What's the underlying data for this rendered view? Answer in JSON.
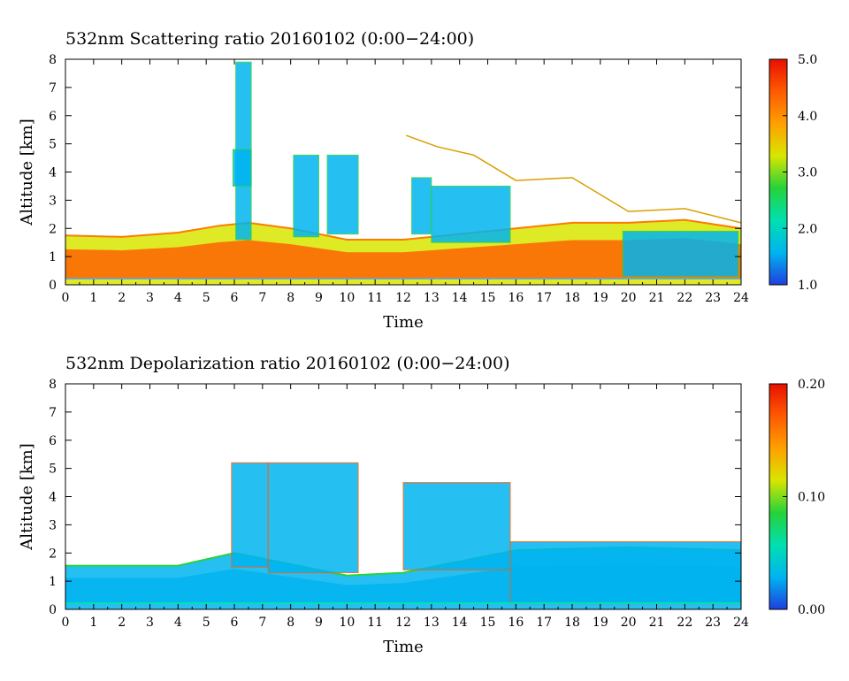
{
  "chart_data": [
    {
      "type": "heatmap",
      "title": "532nm Scattering ratio  20160102 (0:00−24:00)",
      "xlabel": "Time",
      "ylabel": "Altitude [km]",
      "xlim": [
        0,
        24
      ],
      "ylim": [
        0,
        8
      ],
      "x_ticks": [
        "0",
        "1",
        "2",
        "3",
        "4",
        "5",
        "6",
        "7",
        "8",
        "9",
        "10",
        "11",
        "12",
        "13",
        "14",
        "15",
        "16",
        "17",
        "18",
        "19",
        "20",
        "21",
        "22",
        "23",
        "24"
      ],
      "y_ticks": [
        "0",
        "1",
        "2",
        "3",
        "4",
        "5",
        "6",
        "7",
        "8"
      ],
      "colorbar": {
        "range": [
          1.0,
          5.0
        ],
        "tick_labels": [
          "1.0",
          "2.0",
          "3.0",
          "4.0",
          "5.0"
        ],
        "colors": [
          "#1f3fe0",
          "#00b4f0",
          "#00e0b0",
          "#26d23a",
          "#d8e600",
          "#ffa000",
          "#ff5a00",
          "#e81000"
        ]
      },
      "boundary_layer_top_km": [
        {
          "t": 0,
          "z": 1.75
        },
        {
          "t": 2,
          "z": 1.7
        },
        {
          "t": 4,
          "z": 1.85
        },
        {
          "t": 5.5,
          "z": 2.1
        },
        {
          "t": 6.5,
          "z": 2.2
        },
        {
          "t": 8,
          "z": 2.0
        },
        {
          "t": 10,
          "z": 1.6
        },
        {
          "t": 12,
          "z": 1.6
        },
        {
          "t": 14,
          "z": 1.8
        },
        {
          "t": 16,
          "z": 2.0
        },
        {
          "t": 18,
          "z": 2.2
        },
        {
          "t": 20,
          "z": 2.2
        },
        {
          "t": 22,
          "z": 2.3
        },
        {
          "t": 24,
          "z": 2.0
        }
      ],
      "cloud_regions": [
        {
          "t0": 6.05,
          "t1": 6.6,
          "z0": 1.6,
          "z1": 7.9,
          "value": 1.3
        },
        {
          "t0": 5.95,
          "t1": 6.6,
          "z0": 3.5,
          "z1": 4.8,
          "value": 1.6
        },
        {
          "t0": 8.1,
          "t1": 9.0,
          "z0": 1.7,
          "z1": 4.6,
          "value": 1.4
        },
        {
          "t0": 9.3,
          "t1": 10.4,
          "z0": 1.8,
          "z1": 4.6,
          "value": 1.3
        },
        {
          "t0": 12.3,
          "t1": 13.0,
          "z0": 1.8,
          "z1": 3.8,
          "value": 1.3
        },
        {
          "t0": 13.0,
          "t1": 15.8,
          "z0": 1.5,
          "z1": 3.5,
          "value": 1.5
        },
        {
          "t0": 19.8,
          "t1": 23.9,
          "z0": 0.3,
          "z1": 1.9,
          "value": 1.6
        }
      ],
      "cloud_top_km": [
        {
          "t": 12.1,
          "z": 5.3
        },
        {
          "t": 13.2,
          "z": 4.9
        },
        {
          "t": 14.5,
          "z": 4.6
        },
        {
          "t": 16,
          "z": 3.7
        },
        {
          "t": 18,
          "z": 3.8
        },
        {
          "t": 20,
          "z": 2.6
        },
        {
          "t": 22,
          "z": 2.7
        },
        {
          "t": 24,
          "z": 2.2
        }
      ]
    },
    {
      "type": "heatmap",
      "title": "532nm Depolarization ratio  20160102 (0:00−24:00)",
      "xlabel": "Time",
      "ylabel": "Altitude [km]",
      "xlim": [
        0,
        24
      ],
      "ylim": [
        0,
        8
      ],
      "x_ticks": [
        "0",
        "1",
        "2",
        "3",
        "4",
        "5",
        "6",
        "7",
        "8",
        "9",
        "10",
        "11",
        "12",
        "13",
        "14",
        "15",
        "16",
        "17",
        "18",
        "19",
        "20",
        "21",
        "22",
        "23",
        "24"
      ],
      "y_ticks": [
        "0",
        "1",
        "2",
        "3",
        "4",
        "5",
        "6",
        "7",
        "8"
      ],
      "colorbar": {
        "range": [
          0.0,
          0.2
        ],
        "tick_labels": [
          "0.00",
          "0.10",
          "0.20"
        ],
        "colors": [
          "#1f3fe0",
          "#00b4f0",
          "#00e0b0",
          "#26d23a",
          "#d8e600",
          "#ffa000",
          "#ff5a00",
          "#e81000"
        ]
      },
      "boundary_layer_top_km": [
        {
          "t": 0,
          "z": 1.55
        },
        {
          "t": 4,
          "z": 1.55
        },
        {
          "t": 6,
          "z": 2.0
        },
        {
          "t": 10,
          "z": 1.2
        },
        {
          "t": 12,
          "z": 1.3
        },
        {
          "t": 14,
          "z": 1.7
        },
        {
          "t": 16,
          "z": 2.1
        },
        {
          "t": 20,
          "z": 2.2
        },
        {
          "t": 24,
          "z": 2.1
        }
      ],
      "cloud_regions": [
        {
          "t0": 5.9,
          "t1": 7.2,
          "z0": 1.5,
          "z1": 5.2,
          "value": 0.04
        },
        {
          "t0": 7.2,
          "t1": 10.4,
          "z0": 1.3,
          "z1": 5.2,
          "value": 0.035
        },
        {
          "t0": 12.0,
          "t1": 15.8,
          "z0": 1.4,
          "z1": 4.5,
          "value": 0.04
        },
        {
          "t0": 15.8,
          "t1": 24.0,
          "z0": 0.2,
          "z1": 2.4,
          "value": 0.035
        }
      ]
    }
  ]
}
